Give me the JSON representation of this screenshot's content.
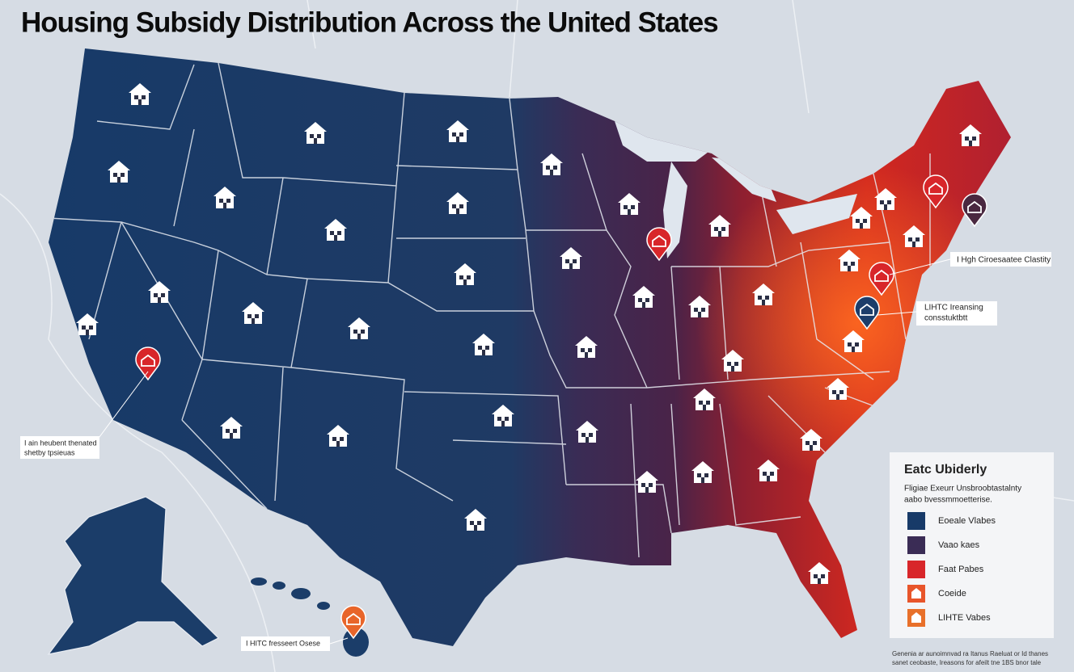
{
  "title": "Housing Subsidy Distribution Across the United States",
  "callouts": [
    {
      "lines": [
        "I Hgh Ciroesaatee Clastity"
      ]
    },
    {
      "lines": [
        "LIHTC Ireansing",
        "consstuktbtt"
      ]
    },
    {
      "lines": [
        "I ain heubent thenated",
        "shetby tpsieuas"
      ]
    },
    {
      "lines": [
        "I HITC fresseert Osese"
      ]
    }
  ],
  "legend": {
    "title": "Eatc Ubiderly",
    "subtitle": [
      "Fligiae Exeurr Unsbroobtastalnty",
      "aabo bvessmmoetterise."
    ],
    "items": [
      {
        "label": "Eoeale Vlabes"
      },
      {
        "label": "Vaao kaes"
      },
      {
        "label": "Faat Pabes"
      },
      {
        "label": "Coeide"
      },
      {
        "label": "LIHTE Vabes"
      }
    ]
  },
  "footer": [
    "Genenia ar aunoimnvad ra Itanus Raeluat or Id thanes",
    "sanet ceobaste, Ireasons for afeilt tne 1BS bnor tale"
  ]
}
